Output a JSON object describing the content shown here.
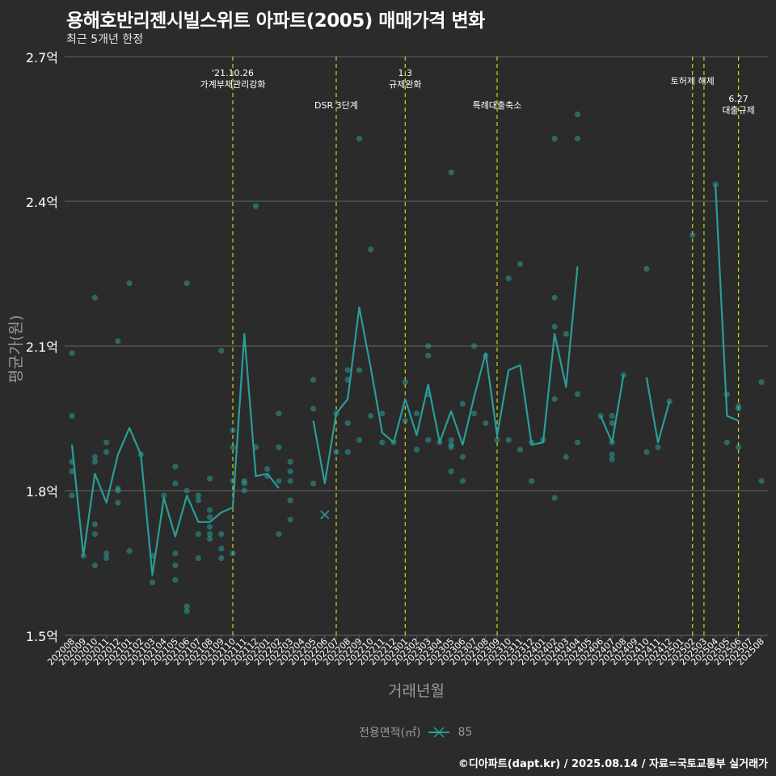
{
  "title": "용해호반리젠시빌스위트 아파트(2005) 매매가격 변화",
  "subtitle": "최근 5개년 한정",
  "caption": "©디아파트(dapt.kr) / 2025.08.14 / 자료=국토교통부 실거래가",
  "legend": {
    "title": "전용면적(㎡)",
    "series_label": "85",
    "color": "#2a9d98"
  },
  "chart_data": {
    "type": "line",
    "xlabel": "거래년월",
    "ylabel": "평균가(원)",
    "ylim": [
      1.5,
      2.7
    ],
    "yticks": [
      1.5,
      1.8,
      2.1,
      2.4,
      2.7
    ],
    "ytick_labels": [
      "1.5억",
      "1.8억",
      "2.1억",
      "2.4억",
      "2.7억"
    ],
    "grid": true,
    "colors": {
      "series": "#2a9d98",
      "events": "#d4d40a",
      "grid": "#5a5a5a",
      "background": "#2b2b2b",
      "text": "#ffffff",
      "axis_text": "#9a9a9a"
    },
    "categories": [
      "202008",
      "202009",
      "202010",
      "202011",
      "202012",
      "202101",
      "202102",
      "202103",
      "202104",
      "202105",
      "202106",
      "202107",
      "202108",
      "202109",
      "202110",
      "202111",
      "202112",
      "202201",
      "202202",
      "202203",
      "202204",
      "202205",
      "202206",
      "202207",
      "202208",
      "202209",
      "202210",
      "202211",
      "202212",
      "202301",
      "202302",
      "202303",
      "202304",
      "202305",
      "202306",
      "202307",
      "202308",
      "202309",
      "202310",
      "202311",
      "202312",
      "202401",
      "202402",
      "202403",
      "202404",
      "202405",
      "202406",
      "202407",
      "202408",
      "202409",
      "202410",
      "202411",
      "202412",
      "202501",
      "202502",
      "202503",
      "202504",
      "202505",
      "202506",
      "202507",
      "202508"
    ],
    "series": [
      {
        "name": "85",
        "mean": [
          1.895,
          1.665,
          1.835,
          1.775,
          1.875,
          1.93,
          1.875,
          1.625,
          1.785,
          1.705,
          1.79,
          1.735,
          1.735,
          1.755,
          1.765,
          2.125,
          1.83,
          1.835,
          1.805,
          null,
          null,
          1.945,
          1.815,
          1.96,
          1.99,
          2.18,
          2.055,
          1.92,
          1.9,
          1.99,
          1.915,
          2.02,
          1.9,
          1.965,
          1.895,
          1.995,
          2.085,
          1.915,
          2.05,
          2.06,
          1.895,
          1.9,
          2.125,
          2.015,
          2.265,
          null,
          1.955,
          1.9,
          2.04,
          null,
          2.035,
          1.9,
          1.985,
          null,
          null,
          null,
          2.435,
          1.955,
          1.945,
          null,
          null
        ],
        "points": [
          [
            0,
            1.79
          ],
          [
            0,
            1.84
          ],
          [
            0,
            1.86
          ],
          [
            0,
            1.955
          ],
          [
            0,
            2.085
          ],
          [
            1,
            1.665
          ],
          [
            2,
            1.645
          ],
          [
            2,
            1.71
          ],
          [
            2,
            1.73
          ],
          [
            2,
            1.86
          ],
          [
            2,
            1.87
          ],
          [
            2,
            2.2
          ],
          [
            3,
            1.66
          ],
          [
            3,
            1.67
          ],
          [
            3,
            1.88
          ],
          [
            3,
            1.9
          ],
          [
            4,
            1.775
          ],
          [
            4,
            1.8
          ],
          [
            4,
            1.805
          ],
          [
            4,
            2.11
          ],
          [
            5,
            1.675
          ],
          [
            5,
            2.23
          ],
          [
            6,
            1.875
          ],
          [
            7,
            1.61
          ],
          [
            7,
            1.665
          ],
          [
            8,
            1.79
          ],
          [
            9,
            1.615
          ],
          [
            9,
            1.645
          ],
          [
            9,
            1.67
          ],
          [
            9,
            1.815
          ],
          [
            9,
            1.85
          ],
          [
            10,
            1.55
          ],
          [
            10,
            1.56
          ],
          [
            10,
            1.8
          ],
          [
            10,
            2.23
          ],
          [
            11,
            1.66
          ],
          [
            11,
            1.71
          ],
          [
            11,
            1.78
          ],
          [
            11,
            1.79
          ],
          [
            12,
            1.7
          ],
          [
            12,
            1.71
          ],
          [
            12,
            1.725
          ],
          [
            12,
            1.745
          ],
          [
            12,
            1.76
          ],
          [
            12,
            1.825
          ],
          [
            13,
            1.66
          ],
          [
            13,
            1.68
          ],
          [
            13,
            1.71
          ],
          [
            13,
            2.09
          ],
          [
            14,
            1.67
          ],
          [
            14,
            1.82
          ],
          [
            14,
            1.89
          ],
          [
            14,
            1.925
          ],
          [
            15,
            1.8
          ],
          [
            15,
            1.815
          ],
          [
            15,
            1.82
          ],
          [
            16,
            1.89
          ],
          [
            16,
            2.39
          ],
          [
            17,
            1.83
          ],
          [
            17,
            1.845
          ],
          [
            18,
            1.71
          ],
          [
            18,
            1.82
          ],
          [
            18,
            1.89
          ],
          [
            18,
            1.96
          ],
          [
            19,
            1.74
          ],
          [
            19,
            1.78
          ],
          [
            19,
            1.82
          ],
          [
            19,
            1.84
          ],
          [
            19,
            1.86
          ],
          [
            21,
            1.815
          ],
          [
            21,
            1.97
          ],
          [
            21,
            2.03
          ],
          [
            23,
            1.88
          ],
          [
            23,
            1.96
          ],
          [
            24,
            1.88
          ],
          [
            24,
            1.94
          ],
          [
            24,
            2.03
          ],
          [
            24,
            2.05
          ],
          [
            25,
            1.905
          ],
          [
            25,
            2.05
          ],
          [
            25,
            2.53
          ],
          [
            26,
            1.955
          ],
          [
            26,
            2.3
          ],
          [
            27,
            1.9
          ],
          [
            27,
            1.96
          ],
          [
            28,
            1.9
          ],
          [
            29,
            1.945
          ],
          [
            29,
            2.025
          ],
          [
            30,
            1.885
          ],
          [
            30,
            1.96
          ],
          [
            31,
            1.905
          ],
          [
            31,
            2.0
          ],
          [
            31,
            2.08
          ],
          [
            31,
            2.1
          ],
          [
            32,
            1.9
          ],
          [
            33,
            1.84
          ],
          [
            33,
            1.89
          ],
          [
            33,
            1.895
          ],
          [
            33,
            1.905
          ],
          [
            33,
            2.46
          ],
          [
            34,
            1.82
          ],
          [
            34,
            1.87
          ],
          [
            34,
            1.98
          ],
          [
            35,
            1.96
          ],
          [
            35,
            2.1
          ],
          [
            36,
            1.94
          ],
          [
            36,
            2.08
          ],
          [
            37,
            1.905
          ],
          [
            38,
            1.905
          ],
          [
            38,
            2.24
          ],
          [
            39,
            1.885
          ],
          [
            39,
            2.27
          ],
          [
            40,
            1.82
          ],
          [
            40,
            1.9
          ],
          [
            41,
            1.905
          ],
          [
            42,
            1.785
          ],
          [
            42,
            1.99
          ],
          [
            42,
            2.14
          ],
          [
            42,
            2.2
          ],
          [
            42,
            2.53
          ],
          [
            43,
            1.87
          ],
          [
            43,
            2.125
          ],
          [
            44,
            1.9
          ],
          [
            44,
            2.0
          ],
          [
            44,
            2.53
          ],
          [
            44,
            2.58
          ],
          [
            46,
            1.955
          ],
          [
            47,
            1.865
          ],
          [
            47,
            1.875
          ],
          [
            47,
            1.9
          ],
          [
            47,
            1.94
          ],
          [
            47,
            1.955
          ],
          [
            48,
            2.04
          ],
          [
            50,
            1.88
          ],
          [
            50,
            2.26
          ],
          [
            51,
            1.89
          ],
          [
            52,
            1.985
          ],
          [
            54,
            2.33
          ],
          [
            56,
            2.435
          ],
          [
            57,
            1.9
          ],
          [
            57,
            2.0
          ],
          [
            58,
            1.89
          ],
          [
            58,
            1.97
          ],
          [
            58,
            1.975
          ],
          [
            60,
            1.82
          ],
          [
            60,
            2.025
          ]
        ],
        "marker": [
          [
            22,
            1.75
          ]
        ]
      }
    ],
    "events": [
      {
        "index": 14,
        "lines": [
          "'21.10.26",
          "가계부채관리강화"
        ],
        "row": 0
      },
      {
        "index": 23,
        "lines": [
          "DSR 3단계"
        ],
        "row": 2
      },
      {
        "index": 29,
        "lines": [
          "1.3",
          "규제완화"
        ],
        "row": 0
      },
      {
        "index": 37,
        "lines": [
          "특례대출축소"
        ],
        "row": 2
      },
      {
        "index": 54,
        "lines": [
          "토허제 해제"
        ],
        "row": 1
      },
      {
        "index": 55,
        "lines": [],
        "row": 1
      },
      {
        "index": 58,
        "lines": [
          "6.27",
          "대출규제"
        ],
        "row": 3
      }
    ]
  }
}
